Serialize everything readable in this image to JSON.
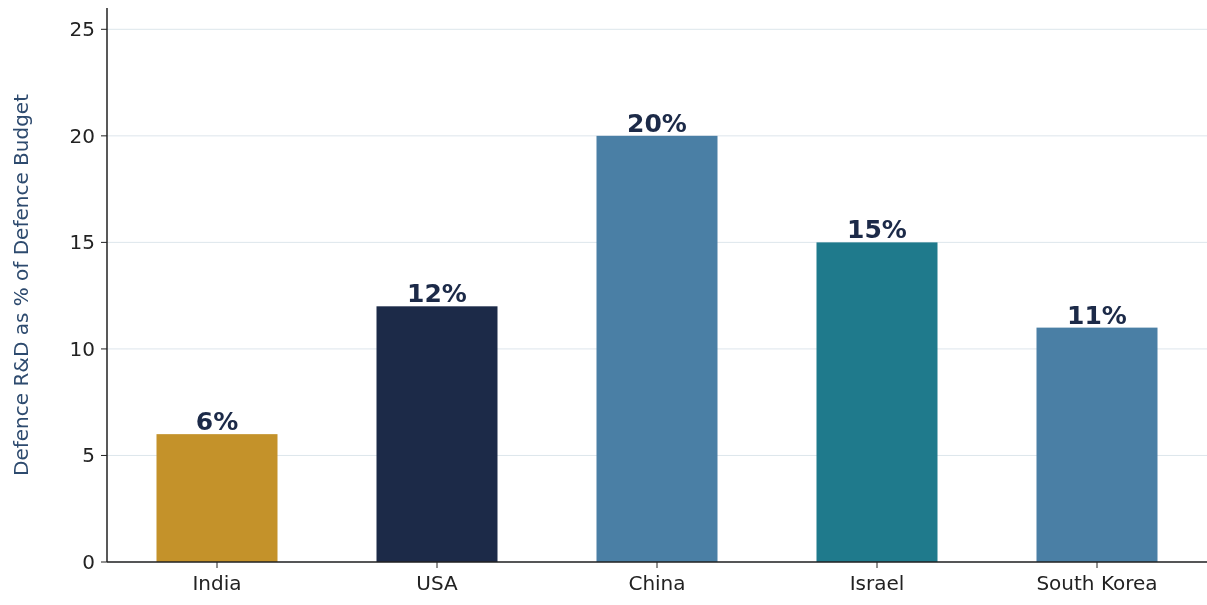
{
  "chart_data": {
    "type": "bar",
    "ylabel": "Defence R&D as % of Defence Budget",
    "categories": [
      "India",
      "USA",
      "China",
      "Israel",
      "South Korea"
    ],
    "values": [
      6,
      12,
      20,
      15,
      11
    ],
    "colors": [
      "#c4922a",
      "#1c2a48",
      "#4a7fa5",
      "#1f7a8c",
      "#4a7fa5"
    ],
    "value_labels": [
      "6%",
      "12%",
      "20%",
      "15%",
      "11%"
    ],
    "ylim": [
      0,
      26
    ],
    "yticks": [
      0,
      5,
      10,
      15,
      20,
      25
    ],
    "grid": "y"
  }
}
